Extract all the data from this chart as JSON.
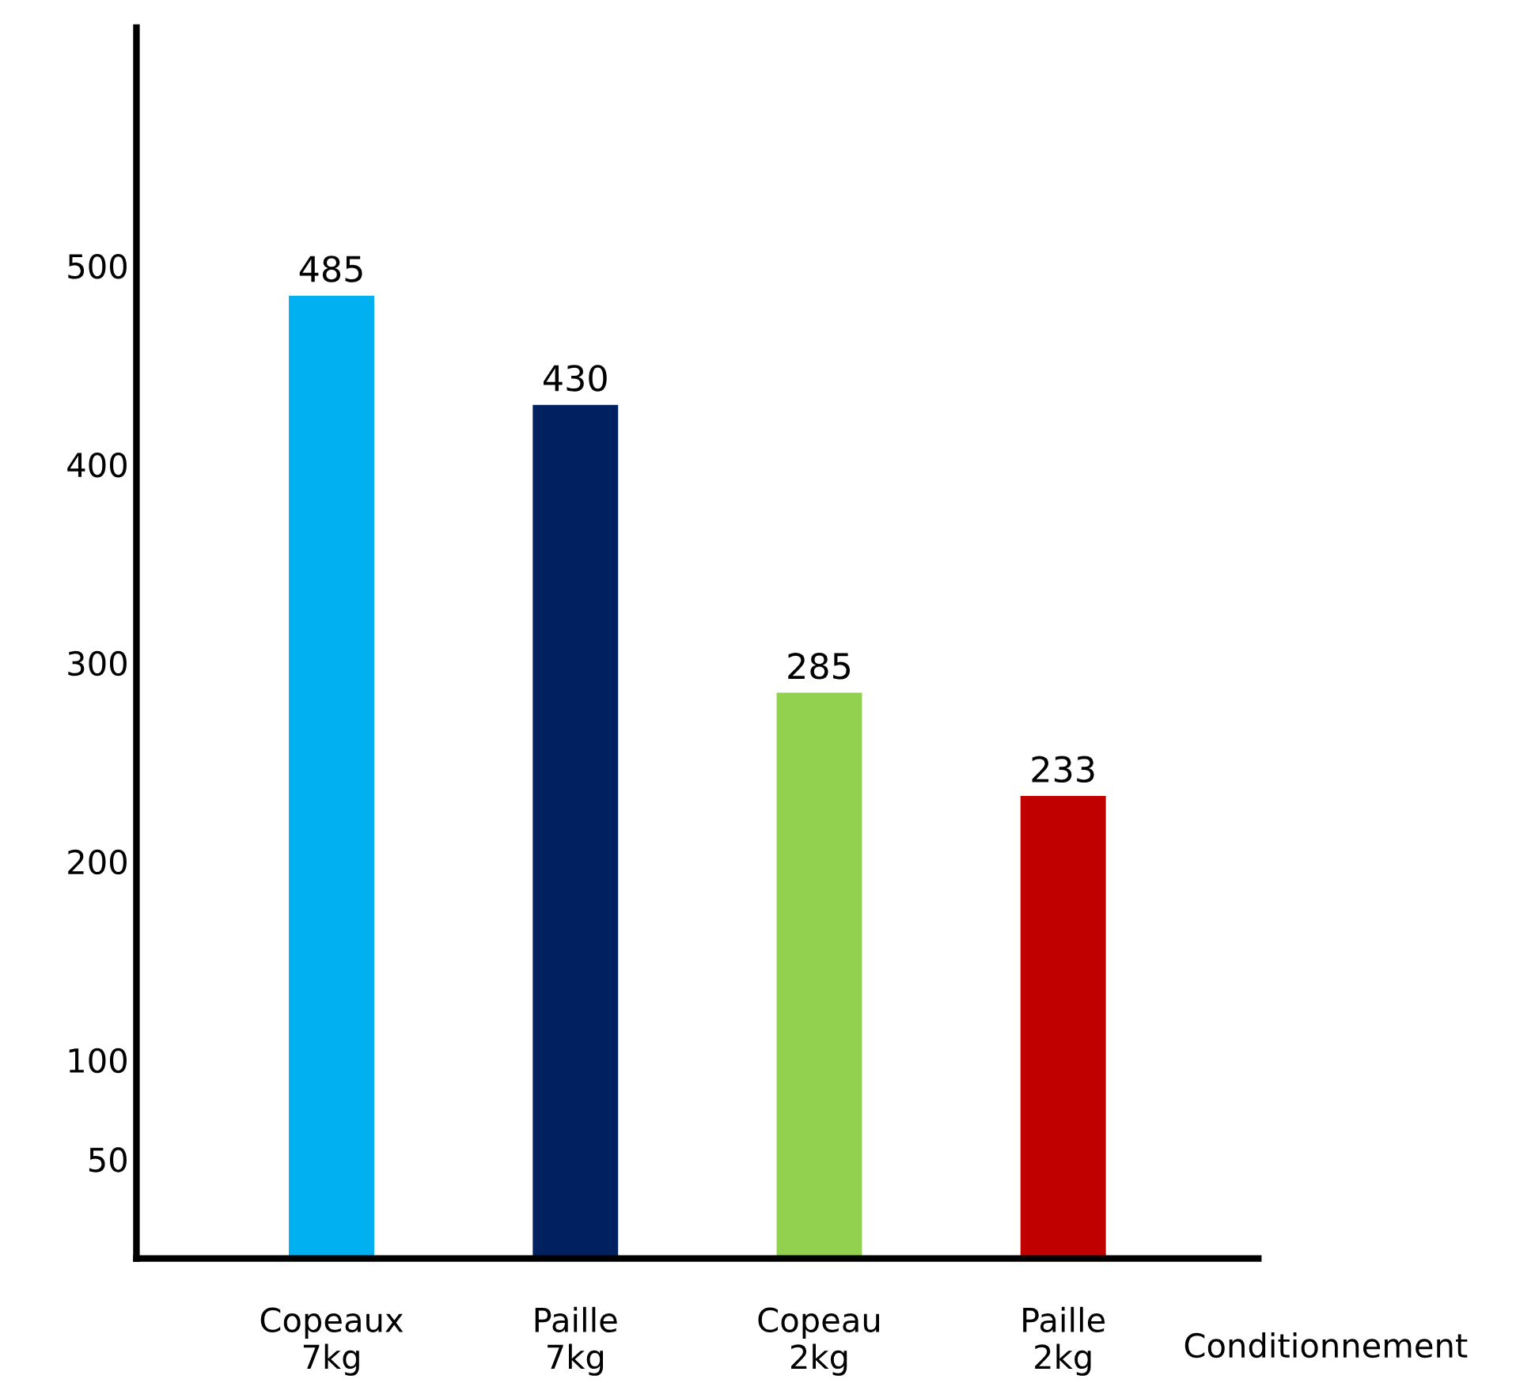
{
  "chart_data": {
    "type": "bar",
    "xlabel": "Conditionnement",
    "categories": [
      "Copeaux\n7kg",
      "Paille\n7kg",
      "Copeau\n2kg",
      "Paille\n2kg"
    ],
    "values": [
      485,
      430,
      285,
      233
    ],
    "colors": [
      "#00b0f0",
      "#002060",
      "#92d050",
      "#c00000"
    ],
    "ylim": [
      0,
      620
    ],
    "yticks": [
      50,
      100,
      200,
      300,
      400,
      500
    ],
    "data_labels": true,
    "grid": false
  }
}
